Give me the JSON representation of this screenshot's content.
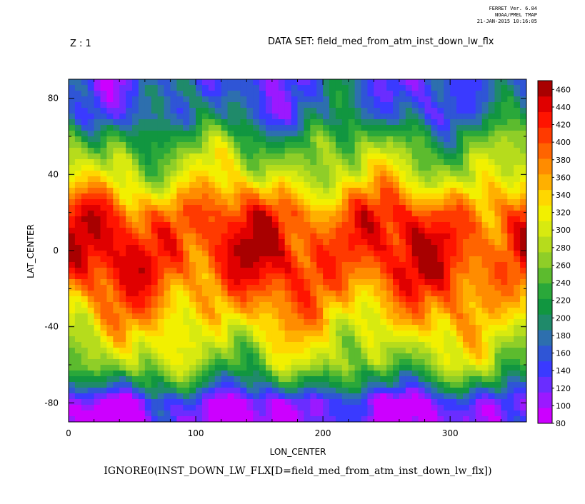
{
  "header": {
    "ferret_version": "FERRET Ver. 6.84",
    "ferret_org": "NOAA/PMEL TMAP",
    "ferret_date": "21-JAN-2015 10:16:05",
    "z_label": "Z : 1",
    "dataset_label": "DATA SET: field_med_from_atm_inst_down_lw_flx"
  },
  "chart_data": {
    "type": "heatmap",
    "title": "IGNORE0(INST_DOWN_LW_FLX[D=field_med_from_atm_inst_down_lw_flx])",
    "xlabel": "LON_CENTER",
    "ylabel": "LAT_CENTER",
    "xlim": [
      0,
      360
    ],
    "ylim": [
      -90,
      90
    ],
    "xticks": [
      0,
      100,
      200,
      300
    ],
    "yticks": [
      80,
      40,
      0,
      -40,
      -80
    ],
    "colorbar": {
      "min": 80,
      "max": 470,
      "labels": [
        460,
        440,
        420,
        400,
        380,
        360,
        340,
        320,
        300,
        280,
        260,
        240,
        220,
        200,
        180,
        160,
        140,
        120,
        100,
        80
      ],
      "colors": [
        "#cc00ff",
        "#9b19ff",
        "#6a2dff",
        "#3a3aff",
        "#2f55d6",
        "#2d6fae",
        "#1f8a6a",
        "#119640",
        "#2aa83a",
        "#5cbb2e",
        "#8fce28",
        "#b6dc1c",
        "#d8ea10",
        "#f2f000",
        "#ffd700",
        "#ffb000",
        "#ff8c00",
        "#ff6400",
        "#ff3a00",
        "#ff1400",
        "#e00000",
        "#a80000"
      ]
    },
    "field_description": "longwave downward flux, high near equator, low at poles",
    "value_profile_by_lat": [
      [
        90,
        150
      ],
      [
        80,
        160
      ],
      [
        70,
        175
      ],
      [
        60,
        230
      ],
      [
        50,
        270
      ],
      [
        40,
        300
      ],
      [
        30,
        350
      ],
      [
        20,
        400
      ],
      [
        10,
        420
      ],
      [
        0,
        425
      ],
      [
        -10,
        415
      ],
      [
        -20,
        390
      ],
      [
        -30,
        360
      ],
      [
        -40,
        330
      ],
      [
        -50,
        300
      ],
      [
        -60,
        270
      ],
      [
        -70,
        200
      ],
      [
        -80,
        110
      ],
      [
        -90,
        100
      ]
    ]
  }
}
